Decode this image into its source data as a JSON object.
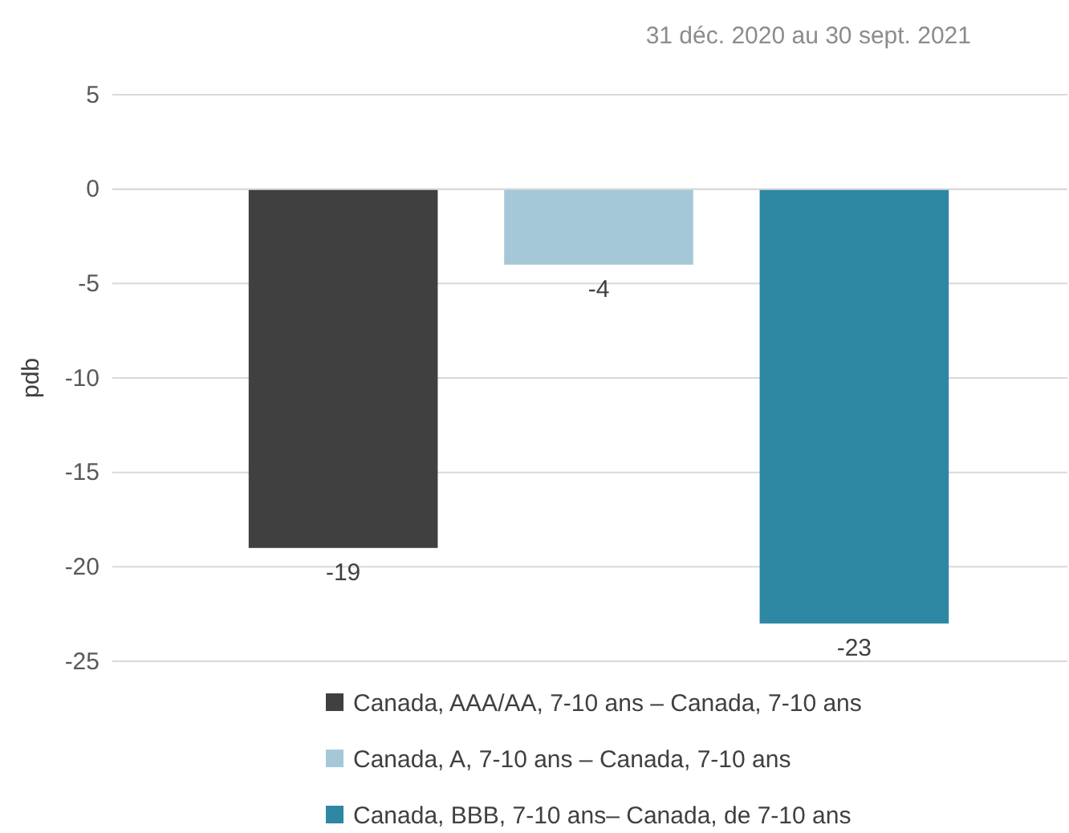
{
  "chart_data": {
    "type": "bar",
    "subtitle": "31 déc. 2020 au 30 sept. 2021",
    "ylabel": "pdb",
    "categories": [
      null,
      null,
      null
    ],
    "series": [
      {
        "name": "Canada, AAA/AA, 7-10 ans – Canada, 7-10 ans",
        "color": "#404040",
        "values": [
          -19,
          null,
          null
        ]
      },
      {
        "name": "Canada, A, 7-10 ans – Canada, 7-10 ans",
        "color": "#a5c8d8",
        "values": [
          null,
          -4,
          null
        ]
      },
      {
        "name": "Canada, BBB, 7-10 ans– Canada, de 7-10 ans",
        "color": "#2e87a3",
        "values": [
          null,
          null,
          -23
        ]
      }
    ],
    "ylim": [
      -25,
      5
    ],
    "yticks": [
      5,
      0,
      -5,
      -10,
      -15,
      -20,
      -25
    ],
    "grid": "y",
    "legend": "bottom",
    "data_labels": true
  }
}
